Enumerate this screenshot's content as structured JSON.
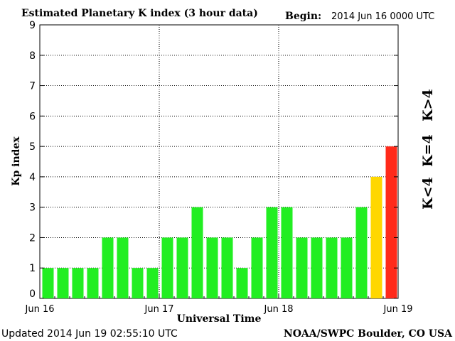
{
  "chart_data": {
    "type": "bar",
    "title": "Estimated Planetary K index (3 hour data)",
    "begin_label": "Begin:",
    "begin_value": "2014 Jun 16 0000 UTC",
    "xlabel": "Universal Time",
    "ylabel": "Kp index",
    "ylim": [
      0,
      9
    ],
    "yticks": [
      "0",
      "1",
      "2",
      "3",
      "4",
      "5",
      "6",
      "7",
      "8",
      "9"
    ],
    "xticks": [
      "Jun 16",
      "Jun 17",
      "Jun 18",
      "Jun 19"
    ],
    "grid": true,
    "values": [
      1,
      1,
      1,
      1,
      2,
      2,
      1,
      1,
      2,
      2,
      3,
      2,
      2,
      1,
      2,
      3,
      3,
      2,
      2,
      2,
      2,
      3,
      4,
      5
    ],
    "colors": {
      "below_4": "#22ee22",
      "equal_4": "#ffd700",
      "above_4": "#ff2a1a"
    },
    "legend": [
      "K<4",
      "K=4",
      "K>4"
    ],
    "updated": "Updated 2014 Jun 19 02:55:10 UTC",
    "source": "NOAA/SWPC Boulder, CO USA"
  }
}
